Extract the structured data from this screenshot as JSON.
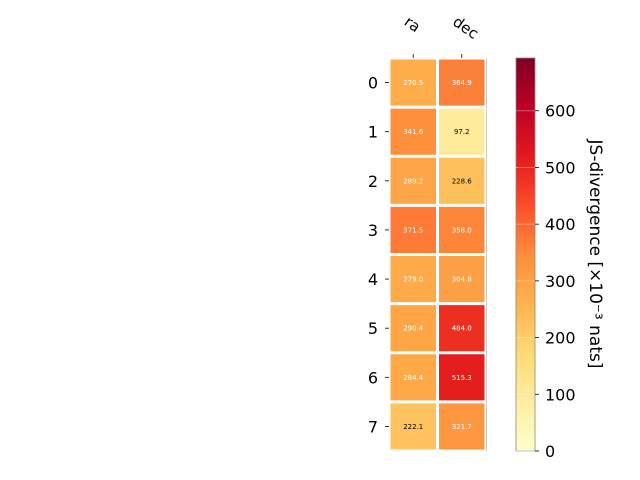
{
  "chart_data": {
    "type": "heatmap",
    "x_categories": [
      "ra",
      "dec"
    ],
    "y_categories": [
      "0",
      "1",
      "2",
      "3",
      "4",
      "5",
      "6",
      "7"
    ],
    "values": [
      [
        270.5,
        364.9
      ],
      [
        341.6,
        97.2
      ],
      [
        289.2,
        228.6
      ],
      [
        371.5,
        358.0
      ],
      [
        279.0,
        304.8
      ],
      [
        290.4,
        484.0
      ],
      [
        284.4,
        515.3
      ],
      [
        222.1,
        321.7
      ]
    ],
    "value_labels": [
      [
        "270.5",
        "364.9"
      ],
      [
        "341.6",
        "97.2"
      ],
      [
        "289.2",
        "228.6"
      ],
      [
        "371.5",
        "358.0"
      ],
      [
        "279.0",
        "304.8"
      ],
      [
        "290.4",
        "484.0"
      ],
      [
        "284.4",
        "515.3"
      ],
      [
        "222.1",
        "321.7"
      ]
    ],
    "colorbar": {
      "label": "JS-divergence [×10⁻³ nats]",
      "range": [
        0,
        693
      ],
      "ticks": [
        0,
        100,
        200,
        300,
        400,
        500,
        600
      ],
      "tick_labels": [
        "0",
        "100",
        "200",
        "300",
        "400",
        "500",
        "600"
      ],
      "colormap": "YlOrRd"
    },
    "grid": false
  }
}
